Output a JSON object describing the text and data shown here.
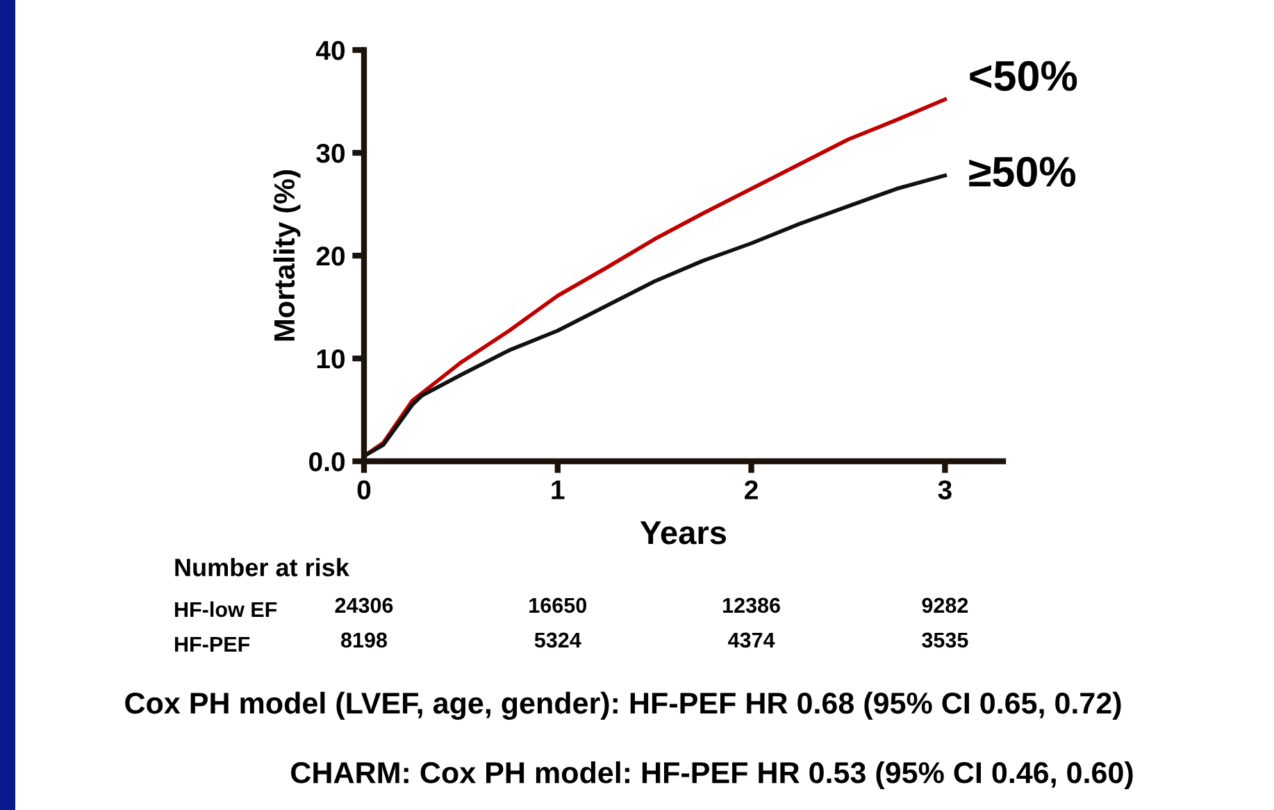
{
  "chart_data": {
    "type": "line",
    "xlabel": "Years",
    "ylabel": "Mortality (%)",
    "xlim": [
      0,
      3.3
    ],
    "ylim": [
      0,
      40
    ],
    "xticks": [
      0,
      1,
      2,
      3
    ],
    "yticks": [
      {
        "value": 0,
        "label": "0.0"
      },
      10,
      20,
      30,
      40
    ],
    "grid": false,
    "legend": false,
    "marker": "none",
    "line_style": "solid",
    "series": [
      {
        "name": "<50%",
        "color": "#c00000",
        "x": [
          0,
          0.1,
          0.25,
          0.5,
          0.75,
          1,
          1.25,
          1.5,
          1.75,
          2,
          2.25,
          2.5,
          2.75,
          3
        ],
        "values": [
          0.5,
          1.8,
          5.9,
          9.6,
          12.7,
          16.1,
          18.8,
          21.6,
          24.1,
          26.5,
          28.9,
          31.3,
          33.2,
          35.2
        ]
      },
      {
        "name": "≥50%",
        "color": "#111111",
        "x": [
          0,
          0.1,
          0.25,
          0.3,
          0.5,
          0.75,
          1,
          1.25,
          1.5,
          1.75,
          2,
          2.25,
          2.5,
          2.75,
          3
        ],
        "values": [
          0.5,
          1.6,
          5.5,
          6.4,
          8.4,
          10.8,
          12.7,
          15.1,
          17.5,
          19.5,
          21.2,
          23.1,
          24.8,
          26.5,
          27.8
        ]
      }
    ],
    "annotations": [
      "Number at risk",
      "HF-low EF",
      "24306",
      "16650",
      "12386",
      "9282",
      "HF-PEF",
      "8198",
      "5324",
      "4374",
      "3535",
      "Cox PH model (LVEF, age, gender): HF-PEF HR 0.68 (95% CI 0.65, 0.72)",
      "CHARM: Cox PH model: HF-PEF HR 0.53 (95% CI 0.46, 0.60)"
    ]
  }
}
